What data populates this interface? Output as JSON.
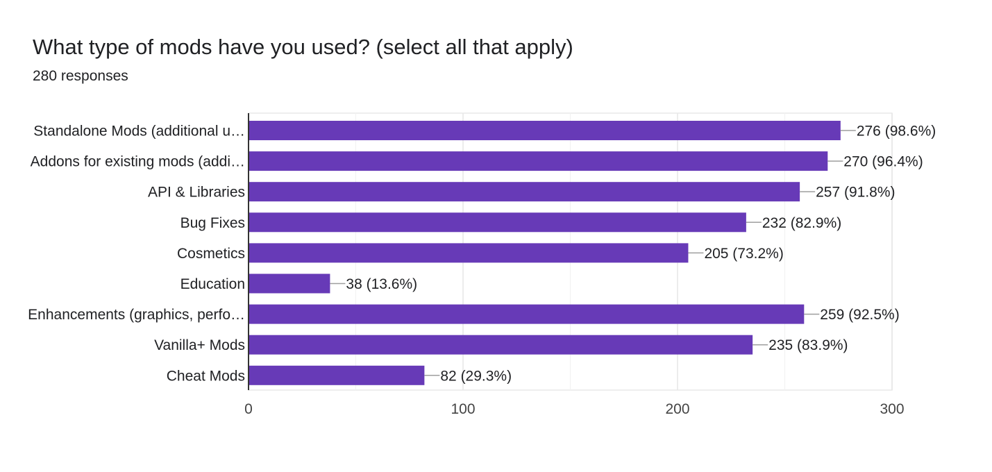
{
  "header": {
    "title": "What type of mods have you used? (select all that apply)",
    "subtitle": "280 responses"
  },
  "chart_data": {
    "type": "bar",
    "orientation": "horizontal",
    "title": "What type of mods have you used? (select all that apply)",
    "subtitle": "280 responses",
    "xlabel": "",
    "ylabel": "",
    "xlim": [
      0,
      300
    ],
    "xticks": [
      0,
      100,
      200,
      300
    ],
    "grid": true,
    "legend": "none",
    "bar_color": "#673ab7",
    "categories": [
      "Standalone Mods (additional u…",
      "Addons for existing mods (addi…",
      "API & Libraries",
      "Bug Fixes",
      "Cosmetics",
      "Education",
      "Enhancements (graphics, perfo…",
      "Vanilla+ Mods",
      "Cheat Mods"
    ],
    "values": [
      276,
      270,
      257,
      232,
      205,
      38,
      259,
      235,
      82
    ],
    "data_labels": [
      "276 (98.6%)",
      "270 (96.4%)",
      "257 (91.8%)",
      "232 (82.9%)",
      "205 (73.2%)",
      "38 (13.6%)",
      "259 (92.5%)",
      "235 (83.9%)",
      "82 (29.3%)"
    ]
  }
}
